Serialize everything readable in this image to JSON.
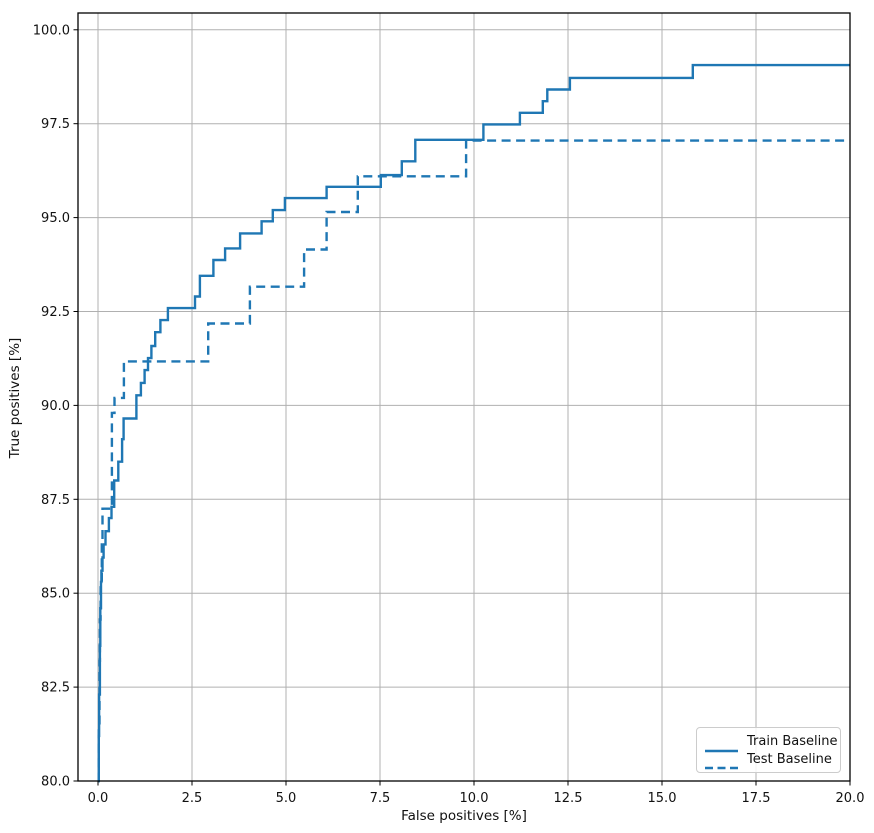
{
  "chart_data": {
    "type": "line",
    "subtype": "step-post-roc",
    "title": "",
    "xlabel": "False positives [%]",
    "ylabel": "True positives [%]",
    "xlim": [
      -0.532,
      20
    ],
    "ylim": [
      80,
      100.447
    ],
    "x_ticks": {
      "values": [
        0,
        2.5,
        5.0,
        7.5,
        10.0,
        12.5,
        15.0,
        17.5,
        20.0
      ],
      "labels": [
        "0.0",
        "2.5",
        "5.0",
        "7.5",
        "10.0",
        "12.5",
        "15.0",
        "17.5",
        "20.0"
      ]
    },
    "y_ticks": {
      "values": [
        80,
        82.5,
        85.0,
        87.5,
        90.0,
        92.5,
        95.0,
        97.5,
        100.0
      ],
      "labels": [
        "80.0",
        "82.5",
        "85.0",
        "87.5",
        "90.0",
        "92.5",
        "95.0",
        "97.5",
        "100.0"
      ]
    },
    "grid": true,
    "legend_position": "lower right",
    "line_color": "#1f77b4",
    "grid_color": "#b0b0b0",
    "spine_color": "#000000",
    "text_color": "#111111",
    "series": [
      {
        "name": "Train Baseline",
        "style": "solid",
        "color": "#1f77b4",
        "end_x": 20,
        "points": [
          [
            0,
            80
          ],
          [
            0.02,
            81.2
          ],
          [
            0.03,
            82.3
          ],
          [
            0.05,
            83.6
          ],
          [
            0.06,
            84.6
          ],
          [
            0.08,
            85.3
          ],
          [
            0.09,
            85.6
          ],
          [
            0.12,
            85.95
          ],
          [
            0.15,
            86.3
          ],
          [
            0.2,
            86.65
          ],
          [
            0.29,
            87.0
          ],
          [
            0.36,
            87.3
          ],
          [
            0.43,
            88.0
          ],
          [
            0.54,
            88.5
          ],
          [
            0.64,
            89.1
          ],
          [
            0.68,
            89.65
          ],
          [
            1.02,
            90.27
          ],
          [
            1.14,
            90.6
          ],
          [
            1.24,
            90.94
          ],
          [
            1.33,
            91.26
          ],
          [
            1.42,
            91.58
          ],
          [
            1.52,
            91.95
          ],
          [
            1.66,
            92.27
          ],
          [
            1.86,
            92.59
          ],
          [
            2.58,
            92.9
          ],
          [
            2.71,
            93.45
          ],
          [
            3.07,
            93.87
          ],
          [
            3.38,
            94.18
          ],
          [
            3.78,
            94.58
          ],
          [
            4.35,
            94.9
          ],
          [
            4.65,
            95.2
          ],
          [
            4.97,
            95.52
          ],
          [
            6.08,
            95.82
          ],
          [
            7.52,
            96.13
          ],
          [
            8.08,
            96.5
          ],
          [
            8.44,
            97.07
          ],
          [
            10.25,
            97.48
          ],
          [
            11.22,
            97.79
          ],
          [
            11.83,
            98.1
          ],
          [
            11.95,
            98.41
          ],
          [
            12.55,
            98.72
          ],
          [
            15.82,
            99.06
          ]
        ]
      },
      {
        "name": "Test Baseline",
        "style": "dashed",
        "color": "#1f77b4",
        "end_x": 20,
        "points": [
          [
            0,
            80
          ],
          [
            0.02,
            81.5
          ],
          [
            0.04,
            83.2
          ],
          [
            0.05,
            84.3
          ],
          [
            0.07,
            85.3
          ],
          [
            0.1,
            86.3
          ],
          [
            0.12,
            87.25
          ],
          [
            0.37,
            89.8
          ],
          [
            0.44,
            90.2
          ],
          [
            0.69,
            91.17
          ],
          [
            2.93,
            92.18
          ],
          [
            4.04,
            93.16
          ],
          [
            5.48,
            94.15
          ],
          [
            6.08,
            95.15
          ],
          [
            6.91,
            96.1
          ],
          [
            9.79,
            97.05
          ]
        ]
      }
    ]
  }
}
